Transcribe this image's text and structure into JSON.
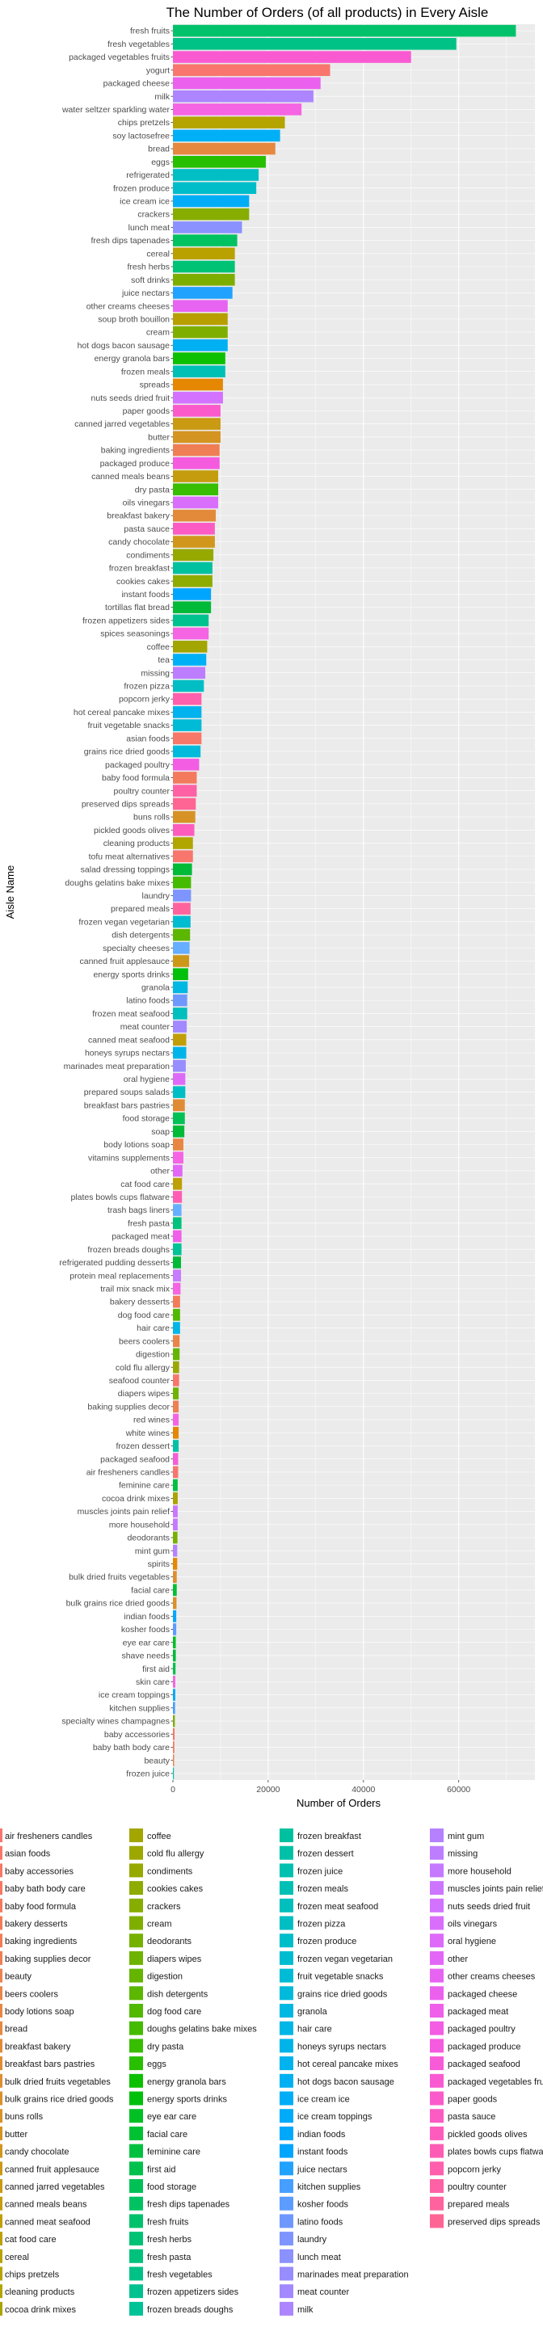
{
  "chart_data": {
    "type": "bar",
    "orientation": "horizontal",
    "title": "The Number of Orders (of all products) in Every Aisle",
    "xlabel": "Number of Orders",
    "ylabel": "Aisle Name",
    "xlim": [
      0,
      76000
    ],
    "x_ticks": [
      0,
      20000,
      40000,
      60000
    ],
    "x_tick_labels": [
      "0",
      "20000",
      "40000",
      "60000"
    ],
    "grid": true,
    "legend_position": "bottom",
    "categories": [
      "fresh fruits",
      "fresh vegetables",
      "packaged vegetables fruits",
      "yogurt",
      "packaged cheese",
      "milk",
      "water seltzer sparkling water",
      "chips pretzels",
      "soy lactosefree",
      "bread",
      "eggs",
      "refrigerated",
      "frozen produce",
      "ice cream ice",
      "crackers",
      "lunch meat",
      "fresh dips tapenades",
      "cereal",
      "fresh herbs",
      "soft drinks",
      "juice nectars",
      "other creams cheeses",
      "soup broth bouillon",
      "cream",
      "hot dogs bacon sausage",
      "energy granola bars",
      "frozen meals",
      "spreads",
      "nuts seeds dried fruit",
      "paper goods",
      "canned jarred vegetables",
      "butter",
      "baking ingredients",
      "packaged produce",
      "canned meals beans",
      "dry pasta",
      "oils vinegars",
      "breakfast bakery",
      "pasta sauce",
      "candy chocolate",
      "condiments",
      "frozen breakfast",
      "cookies cakes",
      "instant foods",
      "tortillas flat bread",
      "frozen appetizers sides",
      "spices seasonings",
      "coffee",
      "tea",
      "missing",
      "frozen pizza",
      "popcorn jerky",
      "hot cereal pancake mixes",
      "fruit vegetable snacks",
      "asian foods",
      "grains rice dried goods",
      "packaged poultry",
      "baby food formula",
      "poultry counter",
      "preserved dips spreads",
      "buns rolls",
      "pickled goods olives",
      "cleaning products",
      "tofu meat alternatives",
      "salad dressing toppings",
      "doughs gelatins bake mixes",
      "laundry",
      "prepared meals",
      "frozen vegan vegetarian",
      "dish detergents",
      "specialty cheeses",
      "canned fruit applesauce",
      "energy sports drinks",
      "granola",
      "latino foods",
      "frozen meat seafood",
      "meat counter",
      "canned meat seafood",
      "honeys syrups nectars",
      "marinades meat preparation",
      "oral hygiene",
      "prepared soups salads",
      "breakfast bars pastries",
      "food storage",
      "soap",
      "body lotions soap",
      "vitamins supplements",
      "other",
      "cat food care",
      "plates bowls cups flatware",
      "trash bags liners",
      "fresh pasta",
      "packaged meat",
      "frozen breads doughs",
      "refrigerated pudding desserts",
      "protein meal replacements",
      "trail mix snack mix",
      "bakery desserts",
      "dog food care",
      "hair care",
      "beers coolers",
      "digestion",
      "cold flu allergy",
      "seafood counter",
      "diapers wipes",
      "baking supplies decor",
      "red wines",
      "white wines",
      "frozen dessert",
      "packaged seafood",
      "air fresheners candles",
      "feminine care",
      "cocoa drink mixes",
      "muscles joints pain relief",
      "more household",
      "deodorants",
      "mint gum",
      "spirits",
      "bulk dried fruits vegetables",
      "facial care",
      "bulk grains rice dried goods",
      "indian foods",
      "kosher foods",
      "eye ear care",
      "shave needs",
      "first aid",
      "skin care",
      "ice cream toppings",
      "kitchen supplies",
      "specialty wines champagnes",
      "baby accessories",
      "baby bath body care",
      "beauty",
      "frozen juice"
    ],
    "values": [
      72000,
      59500,
      50000,
      33000,
      31000,
      29500,
      27000,
      23500,
      22500,
      21500,
      19500,
      18000,
      17500,
      16000,
      16000,
      14500,
      13500,
      13000,
      13000,
      13000,
      12500,
      11500,
      11500,
      11500,
      11500,
      11000,
      11000,
      10500,
      10500,
      10000,
      10000,
      10000,
      9800,
      9800,
      9500,
      9500,
      9500,
      9000,
      8800,
      8800,
      8500,
      8300,
      8300,
      8000,
      8000,
      7500,
      7500,
      7200,
      7000,
      6800,
      6500,
      6000,
      6000,
      6000,
      6000,
      5800,
      5500,
      5000,
      5000,
      4800,
      4700,
      4500,
      4200,
      4200,
      4000,
      3800,
      3800,
      3700,
      3700,
      3600,
      3500,
      3400,
      3200,
      3100,
      3000,
      3000,
      2900,
      2800,
      2800,
      2700,
      2600,
      2600,
      2500,
      2500,
      2400,
      2200,
      2200,
      2000,
      1900,
      1900,
      1800,
      1800,
      1800,
      1800,
      1700,
      1700,
      1600,
      1500,
      1500,
      1500,
      1400,
      1400,
      1300,
      1300,
      1200,
      1200,
      1200,
      1200,
      1200,
      1100,
      1100,
      1000,
      1000,
      1000,
      1000,
      950,
      900,
      900,
      800,
      800,
      750,
      700,
      700,
      600,
      600,
      550,
      500,
      500,
      450,
      400,
      350,
      300,
      250,
      200
    ],
    "legend_entries": [
      "air fresheners candles",
      "asian foods",
      "baby accessories",
      "baby bath body care",
      "baby food formula",
      "bakery desserts",
      "baking ingredients",
      "baking supplies decor",
      "beauty",
      "beers coolers",
      "body lotions soap",
      "bread",
      "breakfast bakery",
      "breakfast bars pastries",
      "bulk dried fruits vegetables",
      "bulk grains rice dried goods",
      "buns rolls",
      "butter",
      "candy chocolate",
      "canned fruit applesauce",
      "canned jarred vegetables",
      "canned meals beans",
      "canned meat seafood",
      "cat food care",
      "cereal",
      "chips pretzels",
      "cleaning products",
      "cocoa drink mixes",
      "coffee",
      "cold flu allergy",
      "condiments",
      "cookies cakes",
      "crackers",
      "cream",
      "deodorants",
      "diapers wipes",
      "digestion",
      "dish detergents",
      "dog food care",
      "doughs gelatins bake mixes",
      "dry pasta",
      "eggs",
      "energy granola bars",
      "energy sports drinks",
      "eye ear care",
      "facial care",
      "feminine care",
      "first aid",
      "food storage",
      "fresh dips tapenades",
      "fresh fruits",
      "fresh herbs",
      "fresh pasta",
      "fresh vegetables",
      "frozen appetizers sides",
      "frozen breads doughs",
      "frozen breakfast",
      "frozen dessert",
      "frozen juice",
      "frozen meals",
      "frozen meat seafood",
      "frozen pizza",
      "frozen produce",
      "frozen vegan vegetarian",
      "fruit vegetable snacks",
      "grains rice dried goods",
      "granola",
      "hair care",
      "honeys syrups nectars",
      "hot cereal pancake mixes",
      "hot dogs bacon sausage",
      "ice cream ice",
      "ice cream toppings",
      "indian foods",
      "instant foods",
      "juice nectars",
      "kitchen supplies",
      "kosher foods",
      "latino foods",
      "laundry",
      "lunch meat",
      "marinades meat preparation",
      "meat counter",
      "milk",
      "mint gum",
      "missing",
      "more household",
      "muscles joints pain relief",
      "nuts seeds dried fruit",
      "oils vinegars",
      "oral hygiene",
      "other",
      "other creams cheeses",
      "packaged cheese",
      "packaged meat",
      "packaged poultry",
      "packaged produce",
      "packaged seafood",
      "packaged vegetables fruits",
      "paper goods",
      "pasta sauce",
      "pickled goods olives",
      "plates bowls cups flatware",
      "popcorn jerky",
      "poultry counter",
      "prepared meals",
      "preserved dips spreads"
    ],
    "legend_colors": [
      "#F8766D",
      "#F77769",
      "#F67865",
      "#F57961",
      "#F47A5D",
      "#F27C59",
      "#F07E55",
      "#EE8051",
      "#EC824D",
      "#EA8449",
      "#E88644",
      "#E6883F",
      "#E38A3A",
      "#E08C35",
      "#DD8E30",
      "#DA902B",
      "#D79226",
      "#D49421",
      "#D1961C",
      "#CD9817",
      "#C99A12",
      "#C59C0D",
      "#C19E08",
      "#BDA004",
      "#B9A100",
      "#B5A300",
      "#B1A500",
      "#AAA300",
      "#A3A500",
      "#9CA700",
      "#95A900",
      "#8EAB00",
      "#86AD00",
      "#7EAF00",
      "#76B100",
      "#6EB300",
      "#65B500",
      "#5BB700",
      "#51B900",
      "#45BB00",
      "#38BD00",
      "#28BF00",
      "#0CC000",
      "#00C00B",
      "#00C023",
      "#00C132",
      "#00C13F",
      "#00C14B",
      "#00C156",
      "#00C260",
      "#00C26A",
      "#00C274",
      "#00C27D",
      "#00C286",
      "#00C28F",
      "#00C297",
      "#00C19F",
      "#00C1A7",
      "#00C0AF",
      "#00C0B6",
      "#00BFBD",
      "#00BEC4",
      "#00BDCA",
      "#00BCD0",
      "#00BBD6",
      "#00BADC",
      "#00B8E1",
      "#00B6E6",
      "#00B4EA",
      "#00B2EE",
      "#00B0F2",
      "#00ADF6",
      "#00ABF9",
      "#00A8FC",
      "#00A5FF",
      "#22A2FF",
      "#469FFF",
      "#5D9CFF",
      "#6F98FF",
      "#7E95FF",
      "#8B91FF",
      "#978DFF",
      "#A289FF",
      "#AC85FF",
      "#B581FF",
      "#BD7DFF",
      "#C579FF",
      "#CC75FF",
      "#D372FE",
      "#D96EFC",
      "#DE6AF9",
      "#E367F6",
      "#E764F2",
      "#EB61EE",
      "#EF5FE9",
      "#F25DE4",
      "#F55BDE",
      "#F75BD8",
      "#F95AD2",
      "#FB5ACB",
      "#FC5BC4",
      "#FD5CBD",
      "#FE5DB5",
      "#FF5FAD",
      "#FF61A5",
      "#FF639D",
      "#FF6594"
    ]
  }
}
